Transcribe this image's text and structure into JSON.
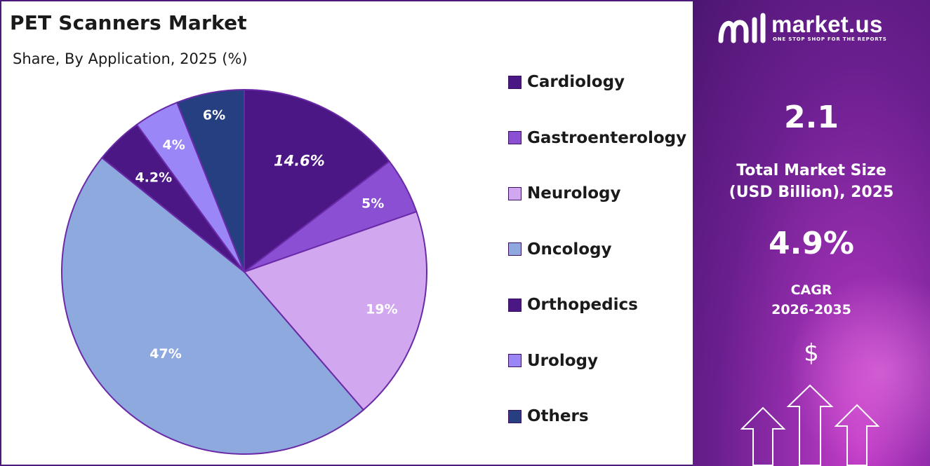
{
  "chart_data": {
    "type": "pie",
    "title": "PET Scanners Market",
    "subtitle": "Share, By Application, 2025 (%)",
    "categories": [
      "Cardiology",
      "Gastroenterology",
      "Neurology",
      "Oncology",
      "Orthopedics",
      "Urology",
      "Others"
    ],
    "values": [
      14.6,
      5,
      19,
      47,
      4.2,
      4,
      6
    ],
    "value_labels": [
      "14.6%",
      "5%",
      "19%",
      "47%",
      "4.2%",
      "4%",
      "6%"
    ],
    "colors": [
      "#4b1785",
      "#8b4fd3",
      "#d1a7ef",
      "#8ea9de",
      "#4b1785",
      "#9a86f7",
      "#263f80"
    ],
    "legend_position": "right",
    "start_angle_deg": 0,
    "direction": "clockwise"
  },
  "side_panel": {
    "brand": "market.us",
    "tagline": "ONE STOP SHOP FOR THE REPORTS",
    "market_size_value": "2.1",
    "market_size_label_line1": "Total Market Size",
    "market_size_label_line2": "(USD Billion), 2025",
    "cagr_value": "4.9%",
    "cagr_label_line1": "CAGR",
    "cagr_label_line2": "2026-2035",
    "currency_symbol": "$",
    "accent_color": "#7b2a9a"
  }
}
